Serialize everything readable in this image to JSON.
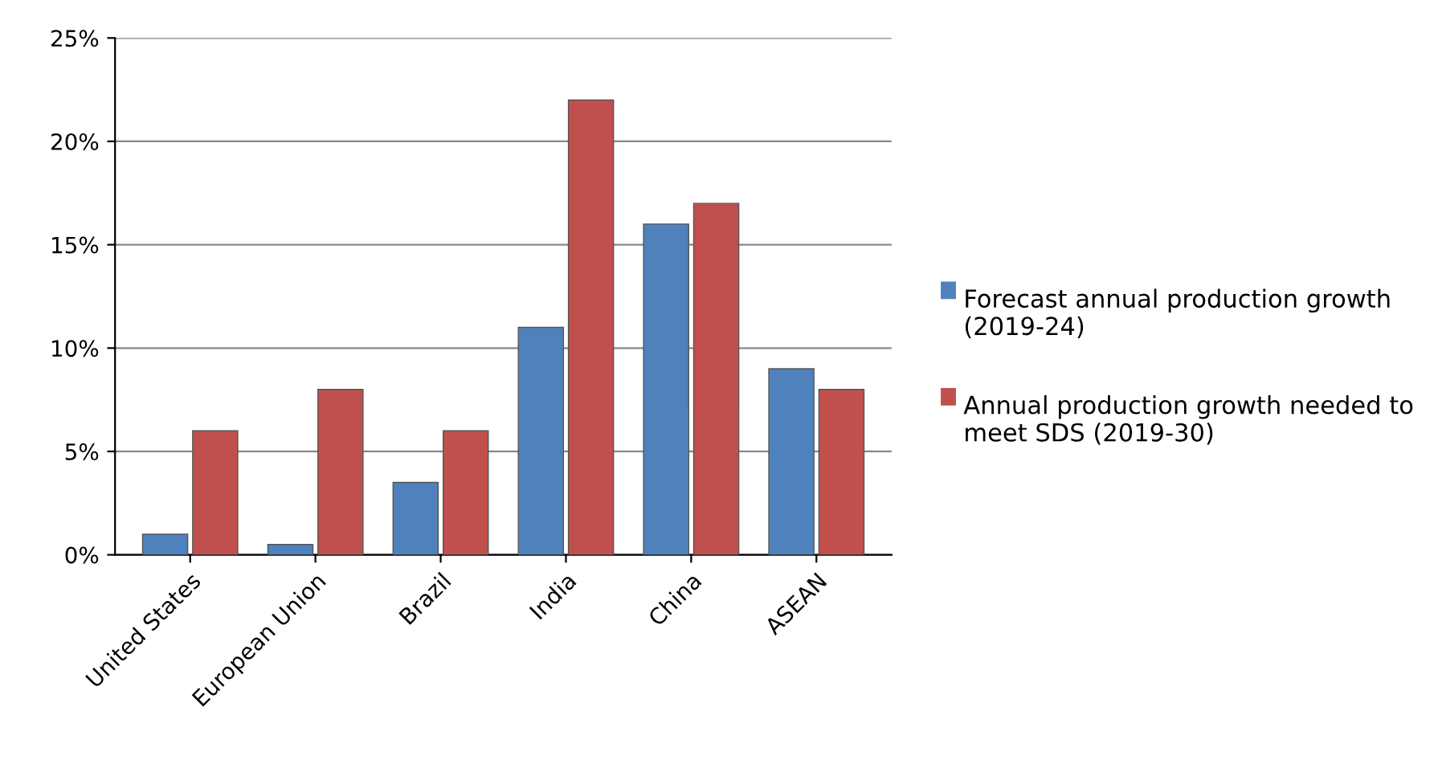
{
  "chart_data": {
    "type": "bar",
    "categories": [
      "United States",
      "European Union",
      "Brazil",
      "India",
      "China",
      "ASEAN"
    ],
    "series": [
      {
        "name": "Forecast annual production growth (2019-24)",
        "color": "#4f81bd",
        "values": [
          1,
          0.5,
          3.5,
          11,
          16,
          9
        ]
      },
      {
        "name": "Annual production growth needed to meet SDS (2019-30)",
        "color": "#c0504d",
        "values": [
          6,
          8,
          6,
          22,
          17,
          8
        ]
      }
    ],
    "ylim": [
      0,
      25
    ],
    "yticks": [
      {
        "value": 0,
        "label": "0%"
      },
      {
        "value": 5,
        "label": "5%"
      },
      {
        "value": 10,
        "label": "10%"
      },
      {
        "value": 15,
        "label": "15%"
      },
      {
        "value": 20,
        "label": "20%"
      },
      {
        "value": 25,
        "label": "25%"
      }
    ],
    "grid": "y",
    "legend": "right"
  }
}
